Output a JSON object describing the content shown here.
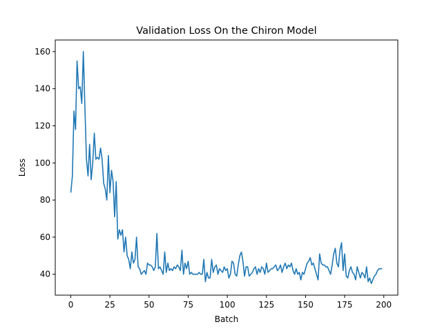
{
  "chart_data": {
    "type": "line",
    "title": "Validation Loss On the Chiron Model",
    "xlabel": "Batch",
    "ylabel": "Loss",
    "xlim": [
      -9.95,
      208.95
    ],
    "ylim": [
      28.75,
      166.25
    ],
    "xticks": [
      0,
      25,
      50,
      75,
      100,
      125,
      150,
      175,
      200
    ],
    "yticks": [
      40,
      60,
      80,
      100,
      120,
      140,
      160
    ],
    "grid": false,
    "color": "#1f77b4",
    "series": [
      {
        "x": [
          0,
          1,
          2,
          3,
          4,
          5,
          6,
          7,
          8,
          9,
          10,
          11,
          12,
          13,
          14,
          15,
          16,
          17,
          18,
          19,
          20,
          21,
          22,
          23,
          24,
          25,
          26,
          27,
          28,
          29,
          30,
          31,
          32,
          33,
          34,
          35,
          36,
          37,
          38,
          39,
          40,
          41,
          42,
          43,
          44,
          45,
          46,
          47,
          48,
          49,
          50,
          51,
          52,
          53,
          54,
          55,
          56,
          57,
          58,
          59,
          60,
          61,
          62,
          63,
          64,
          65,
          66,
          67,
          68,
          69,
          70,
          71,
          72,
          73,
          74,
          75,
          76,
          77,
          78,
          79,
          80,
          81,
          82,
          83,
          84,
          85,
          86,
          87,
          88,
          89,
          90,
          91,
          92,
          93,
          94,
          95,
          96,
          97,
          98,
          99,
          100,
          101,
          102,
          103,
          104,
          105,
          106,
          107,
          108,
          109,
          110,
          111,
          112,
          113,
          114,
          115,
          116,
          117,
          118,
          119,
          120,
          121,
          122,
          123,
          124,
          125,
          126,
          127,
          128,
          129,
          130,
          131,
          132,
          133,
          134,
          135,
          136,
          137,
          138,
          139,
          140,
          141,
          142,
          143,
          144,
          145,
          146,
          147,
          148,
          149,
          150,
          151,
          152,
          153,
          154,
          155,
          156,
          157,
          158,
          159,
          160,
          161,
          162,
          163,
          164,
          165,
          166,
          167,
          168,
          169,
          170,
          171,
          172,
          173,
          174,
          175,
          176,
          177,
          178,
          179,
          180,
          181,
          182,
          183,
          184,
          185,
          186,
          187,
          188,
          189,
          190,
          191,
          192,
          193,
          194,
          195,
          196,
          197,
          198,
          199
        ],
        "values": [
          84,
          93,
          128,
          118,
          155,
          140,
          141,
          132,
          160,
          130,
          102,
          93,
          110,
          91,
          100,
          116,
          102,
          103,
          102,
          108,
          102,
          89,
          86,
          80,
          104,
          84,
          96,
          90,
          71,
          90,
          59,
          64,
          61,
          64,
          52,
          60,
          50,
          48,
          43,
          52,
          46,
          48,
          60,
          44,
          43,
          40,
          41,
          42,
          40,
          46,
          45,
          45,
          44,
          42,
          44,
          62,
          43,
          44,
          42,
          40,
          52,
          41,
          46,
          42,
          43,
          42,
          44,
          43,
          45,
          44,
          42,
          53,
          40,
          46,
          43,
          47,
          40,
          41,
          40,
          40,
          40,
          40,
          41,
          40,
          40,
          48,
          36,
          41,
          38,
          38,
          48,
          41,
          44,
          45,
          40,
          43,
          42,
          41,
          44,
          42,
          43,
          38,
          40,
          47,
          46,
          40,
          39,
          45,
          50,
          52,
          47,
          39,
          44,
          44,
          39,
          40,
          41,
          43,
          44,
          40,
          43,
          41,
          44,
          43,
          40,
          46,
          41,
          42,
          43,
          43,
          44,
          45,
          42,
          43,
          45,
          41,
          44,
          46,
          43,
          45,
          44,
          46,
          42,
          40,
          43,
          40,
          41,
          37,
          41,
          40,
          43,
          46,
          47,
          49,
          45,
          46,
          43,
          40,
          37,
          51,
          46,
          45,
          45,
          44,
          44,
          42,
          40,
          45,
          51,
          54,
          46,
          44,
          53,
          57,
          42,
          51,
          39,
          38,
          42,
          44,
          41,
          40,
          37,
          44,
          41,
          38,
          41,
          40,
          38,
          44,
          36,
          38,
          35,
          37,
          39,
          40,
          42,
          43,
          43,
          43
        ]
      }
    ]
  }
}
